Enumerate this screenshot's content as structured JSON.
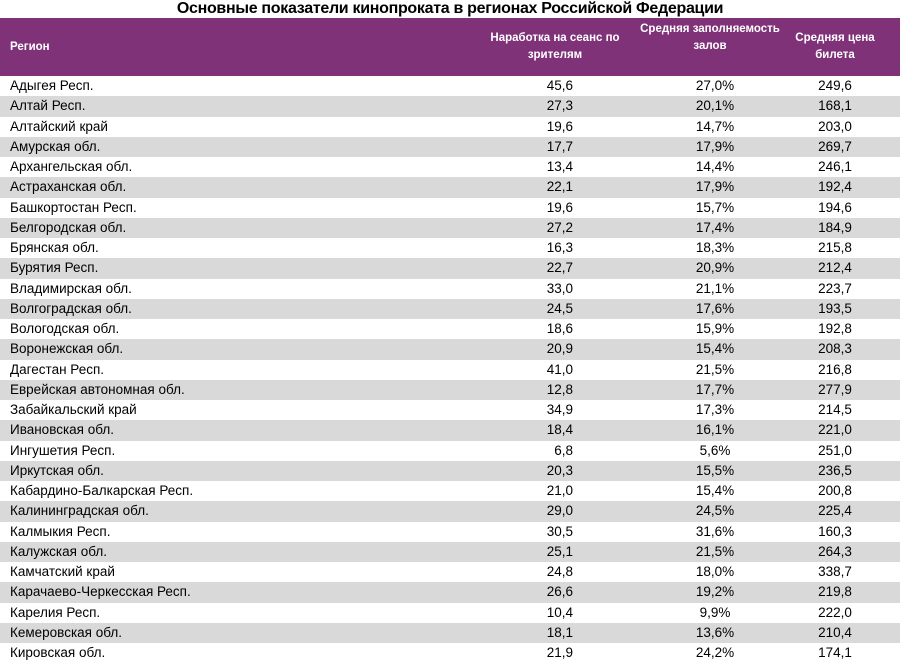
{
  "title": "Основные показатели кинопроката в регионах Российской Федерации",
  "colors": {
    "header_bg": "#7f3278",
    "stripe": "#d9d9d9"
  },
  "columns": [
    "Регион",
    "Наработка на сеанс по зрителям",
    "Средняя заполняемость залов",
    "Средняя цена билета"
  ],
  "rows": [
    [
      "Адыгея Респ.",
      "45,6",
      "27,0%",
      "249,6"
    ],
    [
      "Алтай Респ.",
      "27,3",
      "20,1%",
      "168,1"
    ],
    [
      "Алтайский край",
      "19,6",
      "14,7%",
      "203,0"
    ],
    [
      "Амурская обл.",
      "17,7",
      "17,9%",
      "269,7"
    ],
    [
      "Архангельская обл.",
      "13,4",
      "14,4%",
      "246,1"
    ],
    [
      "Астраханская обл.",
      "22,1",
      "17,9%",
      "192,4"
    ],
    [
      "Башкортостан Респ.",
      "19,6",
      "15,7%",
      "194,6"
    ],
    [
      "Белгородская обл.",
      "27,2",
      "17,4%",
      "184,9"
    ],
    [
      "Брянская обл.",
      "16,3",
      "18,3%",
      "215,8"
    ],
    [
      "Бурятия Респ.",
      "22,7",
      "20,9%",
      "212,4"
    ],
    [
      "Владимирская обл.",
      "33,0",
      "21,1%",
      "223,7"
    ],
    [
      "Волгоградская обл.",
      "24,5",
      "17,6%",
      "193,5"
    ],
    [
      "Вологодская обл.",
      "18,6",
      "15,9%",
      "192,8"
    ],
    [
      "Воронежская обл.",
      "20,9",
      "15,4%",
      "208,3"
    ],
    [
      "Дагестан Респ.",
      "41,0",
      "21,5%",
      "216,8"
    ],
    [
      "Еврейская автономная обл.",
      "12,8",
      "17,7%",
      "277,9"
    ],
    [
      "Забайкальский край",
      "34,9",
      "17,3%",
      "214,5"
    ],
    [
      "Ивановская обл.",
      "18,4",
      "16,1%",
      "221,0"
    ],
    [
      "Ингушетия Респ.",
      "6,8",
      "5,6%",
      "251,0"
    ],
    [
      "Иркутская обл.",
      "20,3",
      "15,5%",
      "236,5"
    ],
    [
      "Кабардино-Балкарская Респ.",
      "21,0",
      "15,4%",
      "200,8"
    ],
    [
      "Калининградская обл.",
      "29,0",
      "24,5%",
      "225,4"
    ],
    [
      "Калмыкия Респ.",
      "30,5",
      "31,6%",
      "160,3"
    ],
    [
      "Калужская обл.",
      "25,1",
      "21,5%",
      "264,3"
    ],
    [
      "Камчатский край",
      "24,8",
      "18,0%",
      "338,7"
    ],
    [
      "Карачаево-Черкесская Респ.",
      "26,6",
      "19,2%",
      "219,8"
    ],
    [
      "Карелия Респ.",
      "10,4",
      "9,9%",
      "222,0"
    ],
    [
      "Кемеровская обл.",
      "18,1",
      "13,6%",
      "210,4"
    ],
    [
      "Кировская обл.",
      "21,9",
      "24,2%",
      "174,1"
    ]
  ]
}
